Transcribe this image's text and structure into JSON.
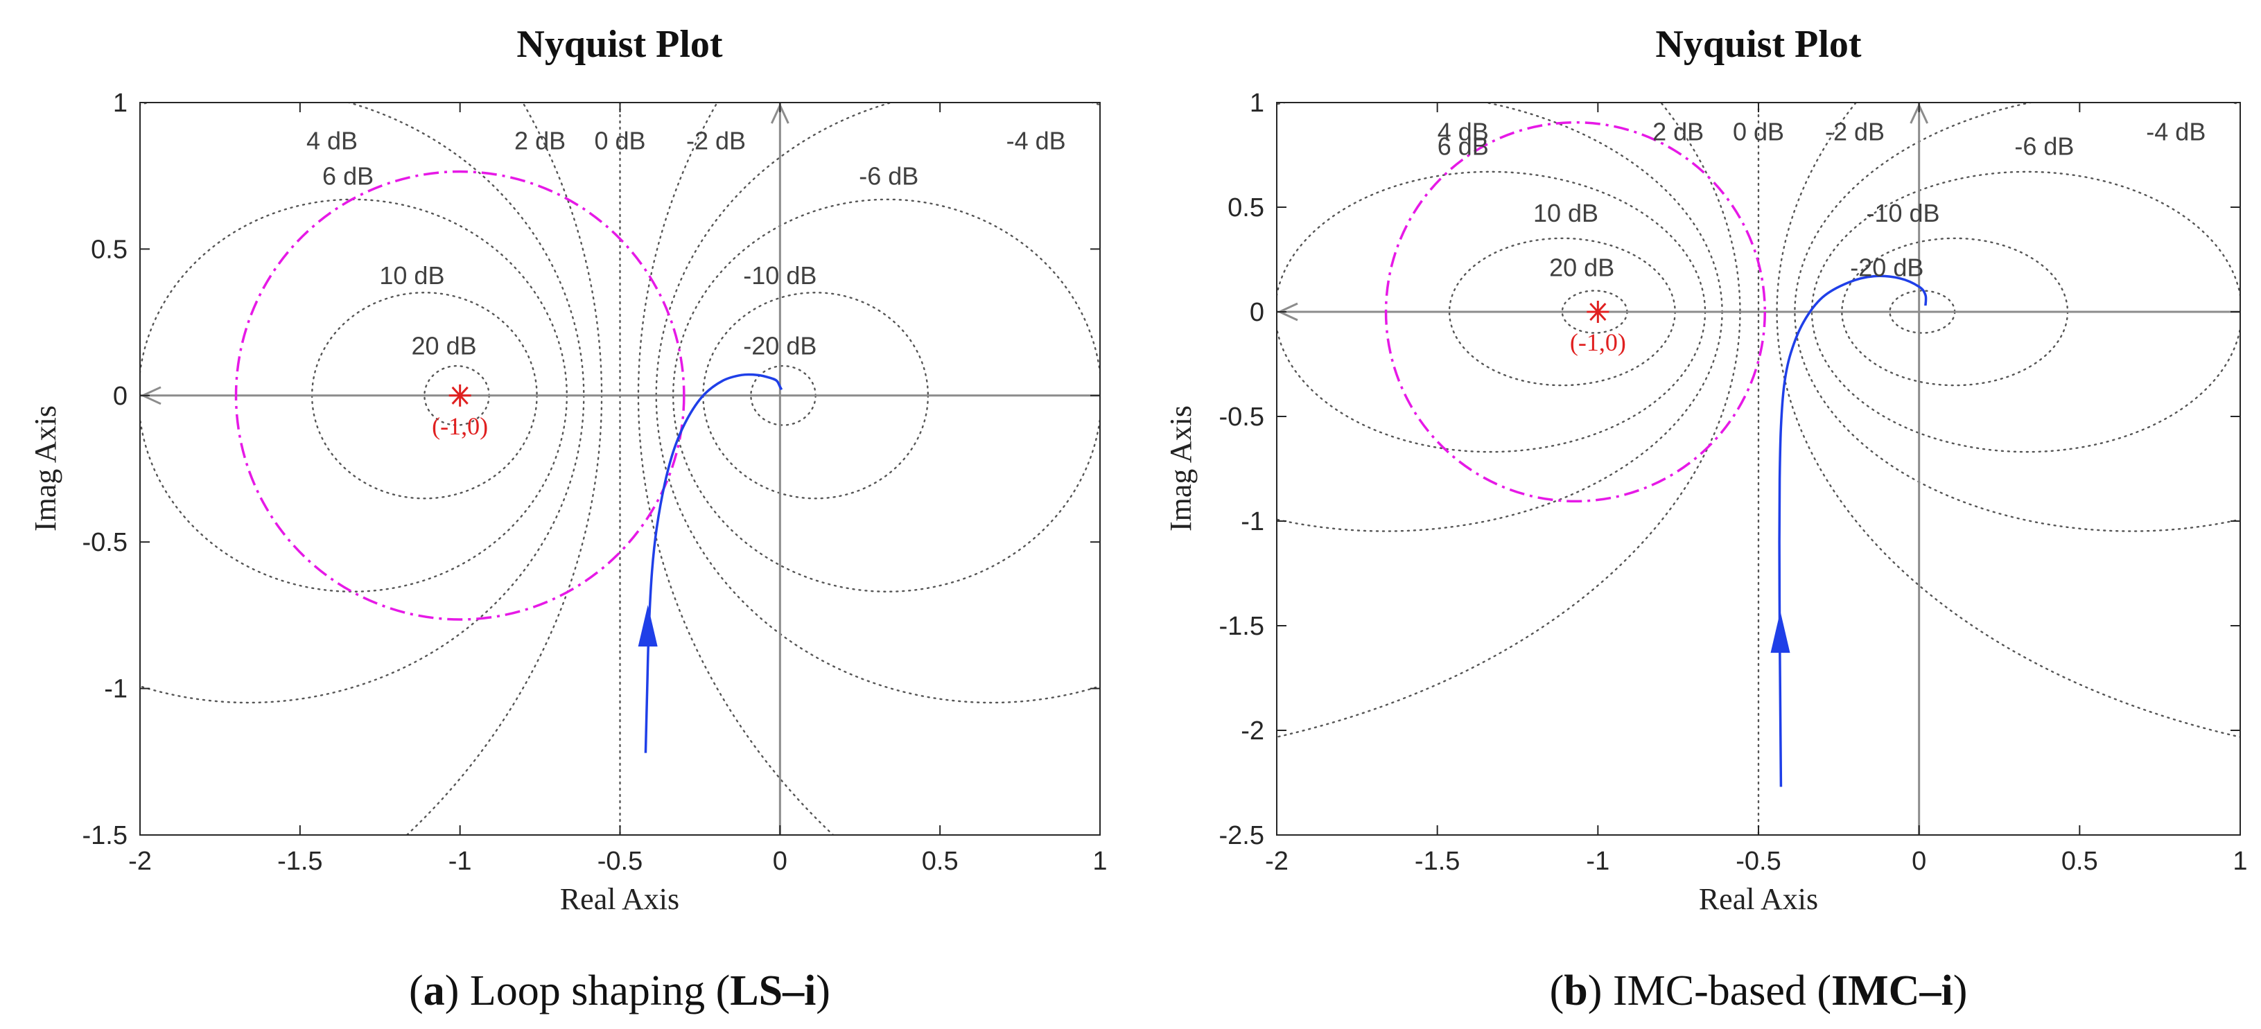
{
  "chart_data": [
    {
      "type": "line",
      "panel_tag": "a",
      "caption_text": "Loop shaping (",
      "caption_bold": "LS–i",
      "caption_close": ")",
      "title": "Nyquist Plot",
      "xlabel": "Real Axis",
      "ylabel": "Imag Axis",
      "xlim": [
        -2,
        1
      ],
      "ylim": [
        -1.5,
        1
      ],
      "xticks": [
        -2,
        -1.5,
        -1,
        -0.5,
        0,
        0.5,
        1
      ],
      "yticks": [
        -1.5,
        -1,
        -0.5,
        0,
        0.5,
        1
      ],
      "xtick_labels": [
        "-2",
        "-1.5",
        "-1",
        "-0.5",
        "0",
        "0.5",
        "1"
      ],
      "ytick_labels": [
        "-1.5",
        "-1",
        "-0.5",
        "0",
        "0.5",
        "1"
      ],
      "grid": "M-circles (dB)",
      "mcircle_labels": [
        {
          "text": "4 dB",
          "x": -1.4,
          "y": 0.84
        },
        {
          "text": "6 dB",
          "x": -1.35,
          "y": 0.72
        },
        {
          "text": "2 dB",
          "x": -0.75,
          "y": 0.84
        },
        {
          "text": "0 dB",
          "x": -0.5,
          "y": 0.84
        },
        {
          "text": "-2 dB",
          "x": -0.2,
          "y": 0.84
        },
        {
          "text": "-4 dB",
          "x": 0.8,
          "y": 0.84
        },
        {
          "text": "-6 dB",
          "x": 0.34,
          "y": 0.72
        },
        {
          "text": "10 dB",
          "x": -1.15,
          "y": 0.38
        },
        {
          "text": "-10 dB",
          "x": 0.0,
          "y": 0.38
        },
        {
          "text": "20 dB",
          "x": -1.05,
          "y": 0.14
        },
        {
          "text": "-20 dB",
          "x": 0.0,
          "y": 0.14
        }
      ],
      "critical_point": {
        "label": "(-1,0)",
        "x": -1,
        "y": 0
      },
      "margin_circle": {
        "name": "robustness circle",
        "color": "#e619e6",
        "cx": -1,
        "cy": 0,
        "r": 0.7
      },
      "series": [
        {
          "name": "Nyquist curve",
          "color": "#1f3fe8",
          "x": [
            -0.42,
            -0.415,
            -0.41,
            -0.4,
            -0.385,
            -0.36,
            -0.33,
            -0.29,
            -0.24,
            -0.18,
            -0.12,
            -0.07,
            -0.03,
            -0.01,
            0.0,
            0.005
          ],
          "y": [
            -1.22,
            -1.0,
            -0.8,
            -0.6,
            -0.45,
            -0.3,
            -0.18,
            -0.08,
            0.0,
            0.05,
            0.07,
            0.07,
            0.06,
            0.05,
            0.03,
            0.02
          ]
        }
      ],
      "arrow": {
        "x": -0.413,
        "y": -0.8
      }
    },
    {
      "type": "line",
      "panel_tag": "b",
      "caption_text": "IMC-based (",
      "caption_bold": "IMC–i",
      "caption_close": ")",
      "title": "Nyquist Plot",
      "xlabel": "Real Axis",
      "ylabel": "Imag Axis",
      "xlim": [
        -2,
        1
      ],
      "ylim": [
        -2.5,
        1
      ],
      "xticks": [
        -2,
        -1.5,
        -1,
        -0.5,
        0,
        0.5,
        1
      ],
      "yticks": [
        -2.5,
        -2,
        -1.5,
        -1,
        -0.5,
        0,
        0.5,
        1
      ],
      "xtick_labels": [
        "-2",
        "-1.5",
        "-1",
        "-0.5",
        "0",
        "0.5",
        "1"
      ],
      "ytick_labels": [
        "-2.5",
        "-2",
        "-1.5",
        "-1",
        "-0.5",
        "0",
        "0.5",
        "1"
      ],
      "grid": "M-circles (dB)",
      "mcircle_labels": [
        {
          "text": "4 dB",
          "x": -1.42,
          "y": 0.82
        },
        {
          "text": "6 dB",
          "x": -1.42,
          "y": 0.75
        },
        {
          "text": "2 dB",
          "x": -0.75,
          "y": 0.82
        },
        {
          "text": "0 dB",
          "x": -0.5,
          "y": 0.82
        },
        {
          "text": "-2 dB",
          "x": -0.2,
          "y": 0.82
        },
        {
          "text": "-4 dB",
          "x": 0.8,
          "y": 0.82
        },
        {
          "text": "-6 dB",
          "x": 0.39,
          "y": 0.75
        },
        {
          "text": "10 dB",
          "x": -1.1,
          "y": 0.43
        },
        {
          "text": "-10 dB",
          "x": -0.05,
          "y": 0.43
        },
        {
          "text": "20 dB",
          "x": -1.05,
          "y": 0.17
        },
        {
          "text": "-20 dB",
          "x": -0.1,
          "y": 0.17
        }
      ],
      "critical_point": {
        "label": "(-1,0)",
        "x": -1,
        "y": 0
      },
      "margin_circle": {
        "name": "robustness circle",
        "color": "#e619e6",
        "cx": -1.07,
        "cy": 0,
        "r": 0.59
      },
      "series": [
        {
          "name": "Nyquist curve",
          "color": "#1f3fe8",
          "x": [
            -0.43,
            -0.432,
            -0.434,
            -0.435,
            -0.434,
            -0.43,
            -0.42,
            -0.4,
            -0.36,
            -0.3,
            -0.22,
            -0.14,
            -0.06,
            0.0,
            0.02,
            0.02
          ],
          "y": [
            -2.27,
            -1.9,
            -1.5,
            -1.1,
            -0.8,
            -0.55,
            -0.35,
            -0.2,
            -0.05,
            0.07,
            0.14,
            0.17,
            0.16,
            0.12,
            0.08,
            0.03
          ]
        }
      ],
      "arrow": {
        "x": -0.432,
        "y": -1.55
      }
    }
  ]
}
